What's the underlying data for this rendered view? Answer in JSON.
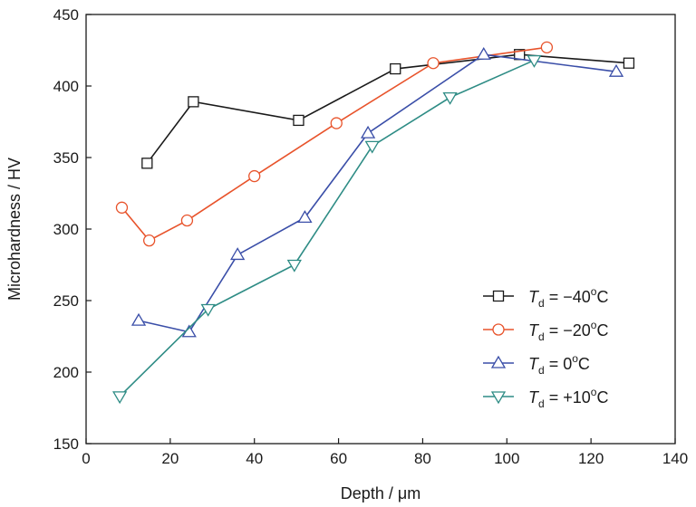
{
  "chart_data": {
    "type": "line",
    "title": "",
    "xlabel": "Depth / μm",
    "ylabel": "Microhardness / HV",
    "xlim": [
      0,
      140
    ],
    "ylim": [
      150,
      450
    ],
    "xticks": [
      "0",
      "20",
      "40",
      "60",
      "80",
      "100",
      "120",
      "140"
    ],
    "yticks": [
      "150",
      "200",
      "250",
      "300",
      "350",
      "400",
      "450"
    ],
    "grid": false,
    "legend_position": "bottom-right",
    "series": [
      {
        "name": "Td = −40°C",
        "legend": {
          "var": "T",
          "sub": "d",
          "pre": " = ",
          "num": "−40",
          "sup": "o",
          "unit": "C"
        },
        "marker": "square",
        "color": "#1a1a1a",
        "x": [
          14.5,
          25.5,
          50.5,
          73.5,
          103,
          129
        ],
        "y": [
          346,
          389,
          376,
          412,
          422,
          416
        ]
      },
      {
        "name": "Td = −20°C",
        "legend": {
          "var": "T",
          "sub": "d",
          "pre": " = ",
          "num": "−20",
          "sup": "o",
          "unit": "C"
        },
        "marker": "circle",
        "color": "#e8532b",
        "x": [
          8.5,
          15,
          24,
          40,
          59.5,
          82.5,
          109.5
        ],
        "y": [
          315,
          292,
          306,
          337,
          374,
          416,
          427
        ]
      },
      {
        "name": "Td = 0°C",
        "legend": {
          "var": "T",
          "sub": "d",
          "pre": " = ",
          "num": "0",
          "sup": "o",
          "unit": "C"
        },
        "marker": "triangle-up",
        "color": "#3a4ea8",
        "x": [
          12.5,
          24.5,
          36,
          52,
          67,
          94.5,
          126
        ],
        "y": [
          236,
          228,
          282,
          308,
          367,
          422,
          410
        ]
      },
      {
        "name": "Td = +10°C",
        "legend": {
          "var": "T",
          "sub": "d",
          "pre": " = ",
          "num": "+10",
          "sup": "o",
          "unit": "C"
        },
        "marker": "triangle-down",
        "color": "#2e8c85",
        "x": [
          8,
          29,
          49.5,
          68,
          86.5,
          106.5
        ],
        "y": [
          183,
          244,
          275,
          358,
          392,
          418
        ]
      }
    ]
  }
}
